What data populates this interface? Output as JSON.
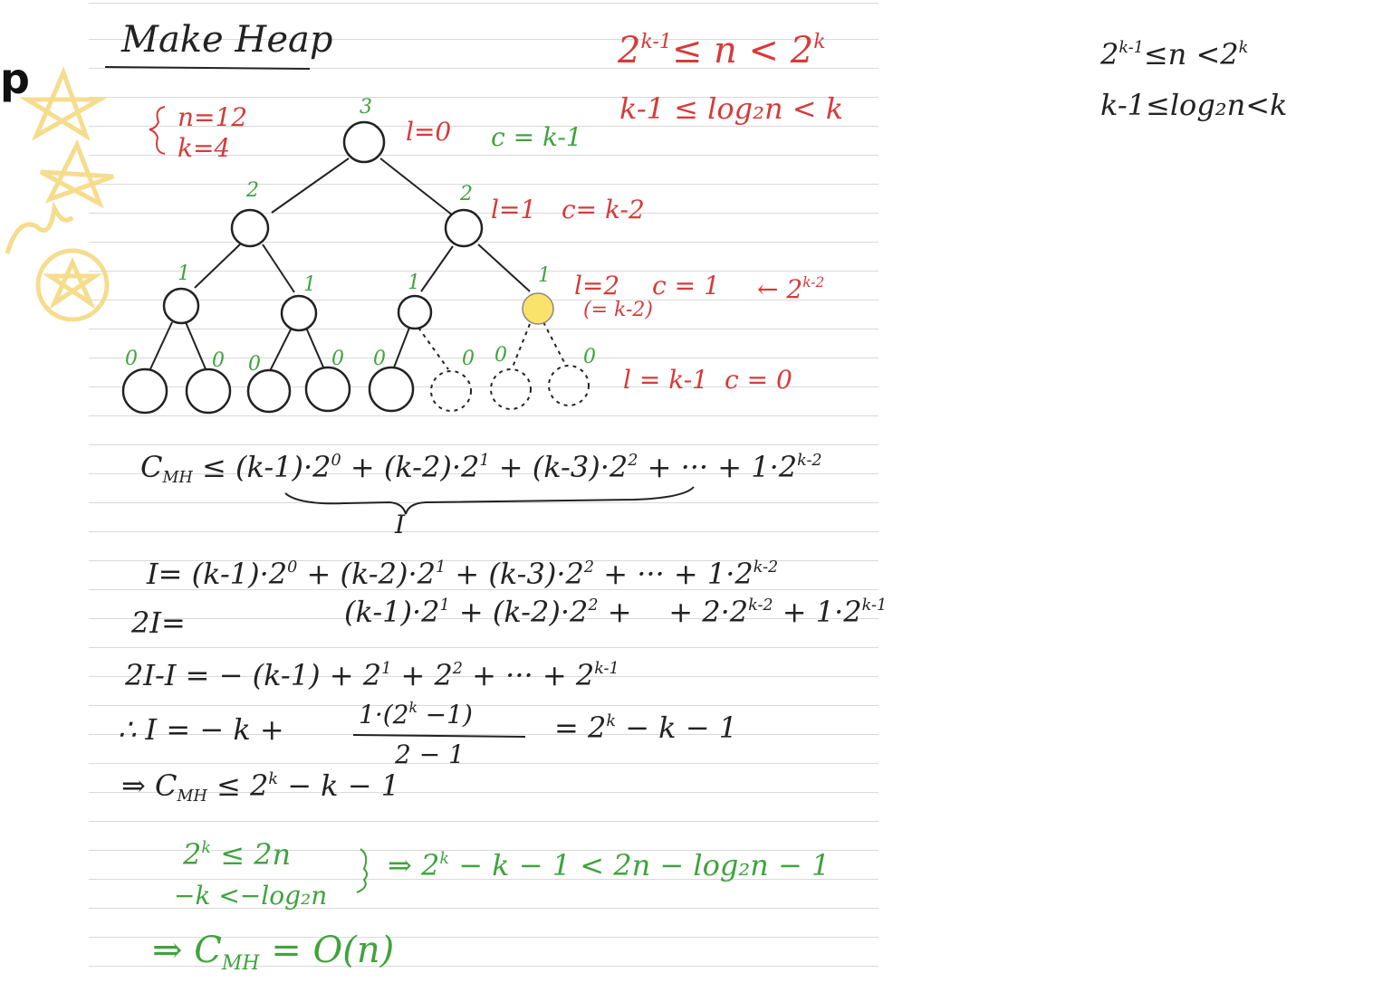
{
  "side_marker": "p",
  "title": "Make Heap",
  "params": {
    "n": "n=12",
    "k": "k=4"
  },
  "range_top": "2^{k-1} ≤ n < 2^k",
  "range_log": "k-1 ≤ log₂n < k",
  "right_note_1": "2^{k-1}≤n <2^k",
  "right_note_2": "k-1≤log₂n<k",
  "tree": {
    "root_cost": "3",
    "level1_costs": [
      "2",
      "2"
    ],
    "level2_costs": [
      "1",
      "1",
      "1",
      "1"
    ],
    "leaf_costs": [
      "0",
      "0",
      "0",
      "0",
      "0",
      "0",
      "0",
      "0"
    ],
    "level_labels": [
      {
        "l": "l=0",
        "c": "c = k-1"
      },
      {
        "l": "l=1",
        "c": "c= k-2"
      },
      {
        "l": "l=2",
        "c": "c = 1",
        "extra": "(= k-2)",
        "arrow": "← 2^{k-2}"
      },
      {
        "l": "l = k-1",
        "c": "c = 0"
      }
    ]
  },
  "ineq_main": "C_MH ≤ (k-1)·2⁰ + (k-2)·2¹ + (k-3)·2² + ··· + 1·2^{k-2}",
  "brace_label": "I",
  "eq_I": "I= (k-1)·2⁰ + (k-2)·2¹ + (k-3)·2² + ··· + 1·2^{k-2}",
  "eq_2I_left": "2I=",
  "eq_2I_right": "(k-1)·2¹ + (k-2)·2² +     + 2·2^{k-2} + 1·2^{k-1}",
  "eq_diff": "2I-I = − (k-1) + 2¹ + 2² + ··· + 2^{k-1}",
  "eq_therefore_left": "∴ I = − k +",
  "eq_fraction_num": "1·(2^k −1)",
  "eq_fraction_den": "2 − 1",
  "eq_therefore_right": "= 2^k − k − 1",
  "eq_implies": "⇒ C_MH ≤ 2^k − k − 1",
  "green_1": "2^k ≤ 2n",
  "green_2": "−k <−log₂n",
  "green_result": "⇒ 2^k − k − 1 < 2n − log₂n − 1",
  "green_final": "⇒ C_MH = O(n)",
  "colors": {
    "ink": "#222222",
    "red": "#d63a3a",
    "green": "#3fa33c",
    "highlight": "#fbe36b",
    "doodle": "#f5d77a"
  }
}
